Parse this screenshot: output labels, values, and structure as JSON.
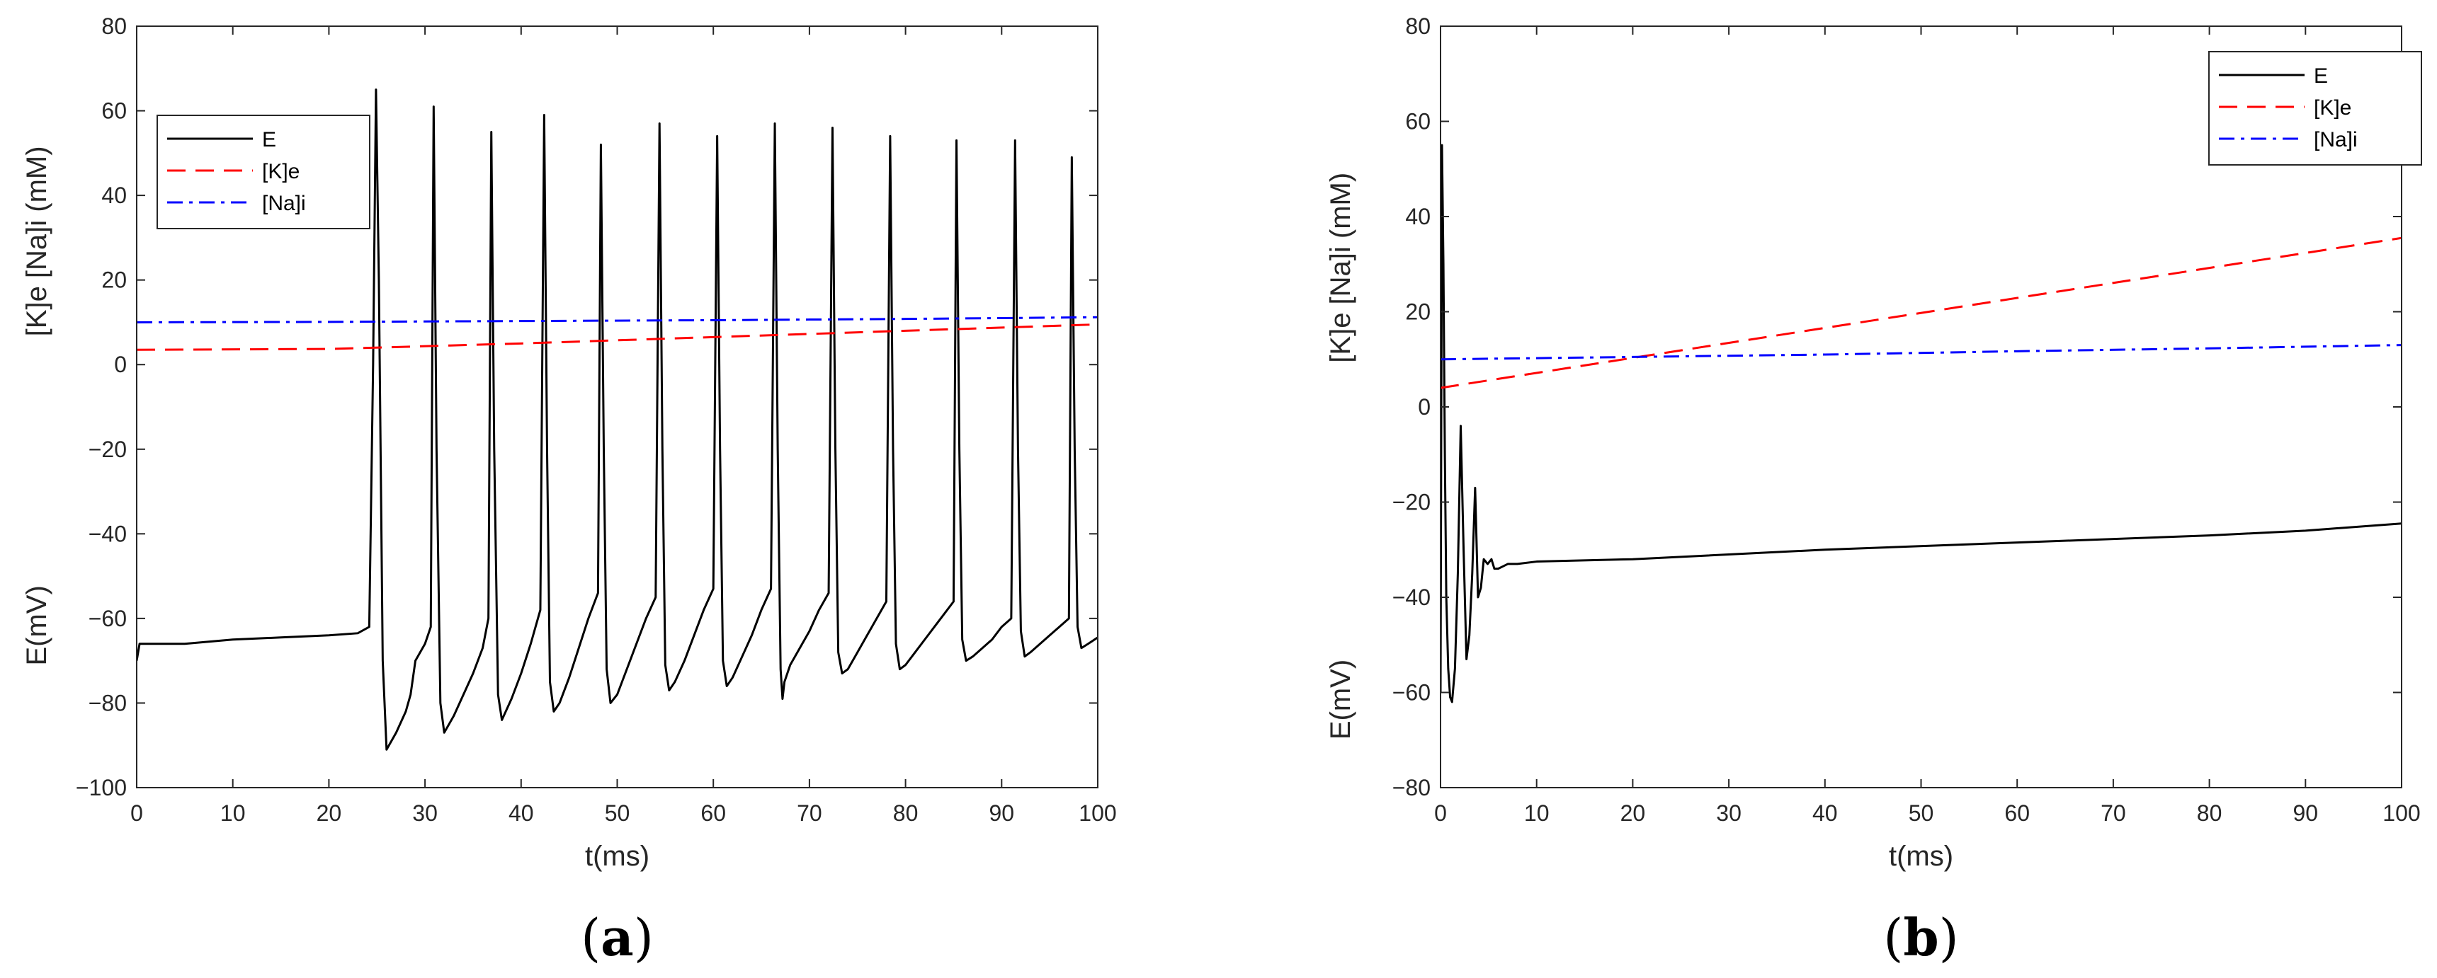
{
  "chart_data": [
    {
      "id": "a",
      "type": "line",
      "panel_label": {
        "open": "(",
        "letter": "a",
        "close": ")"
      },
      "xlabel": "t(ms)",
      "ylabel_top": "[K]e  [Na]i (mM)",
      "ylabel_bottom": "E(mV)",
      "xlim": [
        0,
        100
      ],
      "ylim": [
        -100,
        80
      ],
      "xticks": [
        0,
        10,
        20,
        30,
        40,
        50,
        60,
        70,
        80,
        90,
        100
      ],
      "yticks": [
        -100,
        -80,
        -60,
        -40,
        -20,
        0,
        20,
        40,
        60,
        80
      ],
      "legend_position": "top-left",
      "series": [
        {
          "name": "E",
          "color": "#000000",
          "style": "solid",
          "x": [
            0,
            0.3,
            5,
            10,
            15,
            20,
            23,
            24.2,
            24.6,
            24.9,
            25.2,
            25.6,
            26,
            27,
            28,
            28.5,
            29,
            30,
            30.6,
            30.9,
            31.2,
            31.6,
            32,
            33,
            34,
            35,
            36,
            36.6,
            36.9,
            37.2,
            37.6,
            38,
            39,
            40,
            41,
            42,
            42.4,
            42.7,
            43,
            43.4,
            44,
            45,
            46,
            47,
            48,
            48.3,
            48.6,
            48.9,
            49.3,
            50,
            51,
            52,
            53,
            54,
            54.4,
            54.7,
            55,
            55.4,
            56,
            57,
            58,
            59,
            60,
            60.4,
            60.7,
            61,
            61.4,
            62,
            63,
            64,
            65,
            66,
            66.4,
            66.7,
            67,
            67.2,
            67.4,
            67.7,
            68,
            69,
            70,
            71,
            72,
            72.4,
            72.7,
            73,
            73.4,
            74,
            75,
            76,
            77,
            78,
            78.4,
            78.7,
            79,
            79.4,
            80,
            81,
            82,
            83,
            84,
            85,
            85.3,
            85.6,
            85.9,
            86.3,
            87,
            88,
            89,
            90,
            91,
            91.4,
            91.7,
            92,
            92.4,
            93,
            94,
            95,
            96,
            97,
            97.3,
            97.6,
            97.9,
            98.3,
            99,
            100
          ],
          "y": [
            -70,
            -66,
            -66,
            -65,
            -64.5,
            -64,
            -63.5,
            -62,
            0,
            65,
            20,
            -70,
            -91,
            -87,
            -82,
            -78,
            -70,
            -66,
            -62,
            61,
            -20,
            -80,
            -87,
            -83,
            -78,
            -73,
            -67,
            -60,
            55,
            -20,
            -78,
            -84,
            -79,
            -73,
            -66,
            -58,
            59,
            -20,
            -75,
            -82,
            -80,
            -74,
            -67,
            -60,
            -54,
            52,
            -20,
            -72,
            -80,
            -78,
            -72,
            -66,
            -60,
            -55,
            57,
            -20,
            -71,
            -77,
            -75,
            -70,
            -64,
            -58,
            -53,
            54,
            -20,
            -70,
            -76,
            -74,
            -69,
            -64,
            -58,
            -53,
            57,
            -20,
            -72,
            -79,
            -75,
            -73,
            -71,
            -67,
            -63,
            -58,
            -54,
            56,
            -20,
            -68,
            -73,
            -72,
            -68,
            -64,
            -60,
            -56,
            54,
            -20,
            -66,
            -72,
            -71,
            -68,
            -65,
            -62,
            -59,
            -56,
            53,
            -20,
            -65,
            -70,
            -69,
            -67,
            -65,
            -62,
            -60,
            53,
            -20,
            -63,
            -69,
            -68,
            -66,
            -64,
            -62,
            -60,
            49,
            -20,
            -62,
            -67,
            -66,
            -64.5
          ]
        },
        {
          "name": "[K]e",
          "color": "#ff0000",
          "style": "dashed",
          "x": [
            0,
            20,
            40,
            60,
            80,
            100
          ],
          "y": [
            3.5,
            3.7,
            5.0,
            6.5,
            8.0,
            9.5
          ]
        },
        {
          "name": "[Na]i",
          "color": "#0000ff",
          "style": "dashdot",
          "x": [
            0,
            20,
            40,
            60,
            80,
            100
          ],
          "y": [
            10,
            10.1,
            10.3,
            10.5,
            10.8,
            11.2
          ]
        }
      ]
    },
    {
      "id": "b",
      "type": "line",
      "panel_label": {
        "open": "(",
        "letter": "b",
        "close": ")"
      },
      "xlabel": "t(ms)",
      "ylabel_top": "[K]e  [Na]i (mM)",
      "ylabel_bottom": "E(mV)",
      "xlim": [
        0,
        100
      ],
      "ylim": [
        -80,
        80
      ],
      "xticks": [
        0,
        10,
        20,
        30,
        40,
        50,
        60,
        70,
        80,
        90,
        100
      ],
      "yticks": [
        -80,
        -60,
        -40,
        -20,
        0,
        20,
        40,
        60,
        80
      ],
      "legend_position": "top-right",
      "series": [
        {
          "name": "E",
          "color": "#000000",
          "style": "solid",
          "x": [
            0,
            0.15,
            0.3,
            0.45,
            0.6,
            0.8,
            1.0,
            1.2,
            1.5,
            1.8,
            2.1,
            2.4,
            2.7,
            3.0,
            3.3,
            3.6,
            3.9,
            4.2,
            4.5,
            4.9,
            5.3,
            5.6,
            6.0,
            6.5,
            7,
            8,
            10,
            20,
            40,
            60,
            80,
            90,
            100
          ],
          "y": [
            -60,
            55,
            30,
            -10,
            -40,
            -55,
            -61,
            -62,
            -55,
            -35,
            -4,
            -30,
            -53,
            -48,
            -35,
            -17,
            -40,
            -38,
            -32,
            -33,
            -32,
            -34,
            -34,
            -33.5,
            -33,
            -33,
            -32.5,
            -32,
            -30,
            -28.5,
            -27,
            -26,
            -24.5
          ]
        },
        {
          "name": "[K]e",
          "color": "#ff0000",
          "style": "dashed",
          "x": [
            0,
            100
          ],
          "y": [
            4,
            35.5
          ]
        },
        {
          "name": "[Na]i",
          "color": "#0000ff",
          "style": "dashdot",
          "x": [
            0,
            20,
            40,
            60,
            80,
            100
          ],
          "y": [
            10,
            10.5,
            11,
            11.7,
            12.3,
            13
          ]
        }
      ]
    }
  ]
}
